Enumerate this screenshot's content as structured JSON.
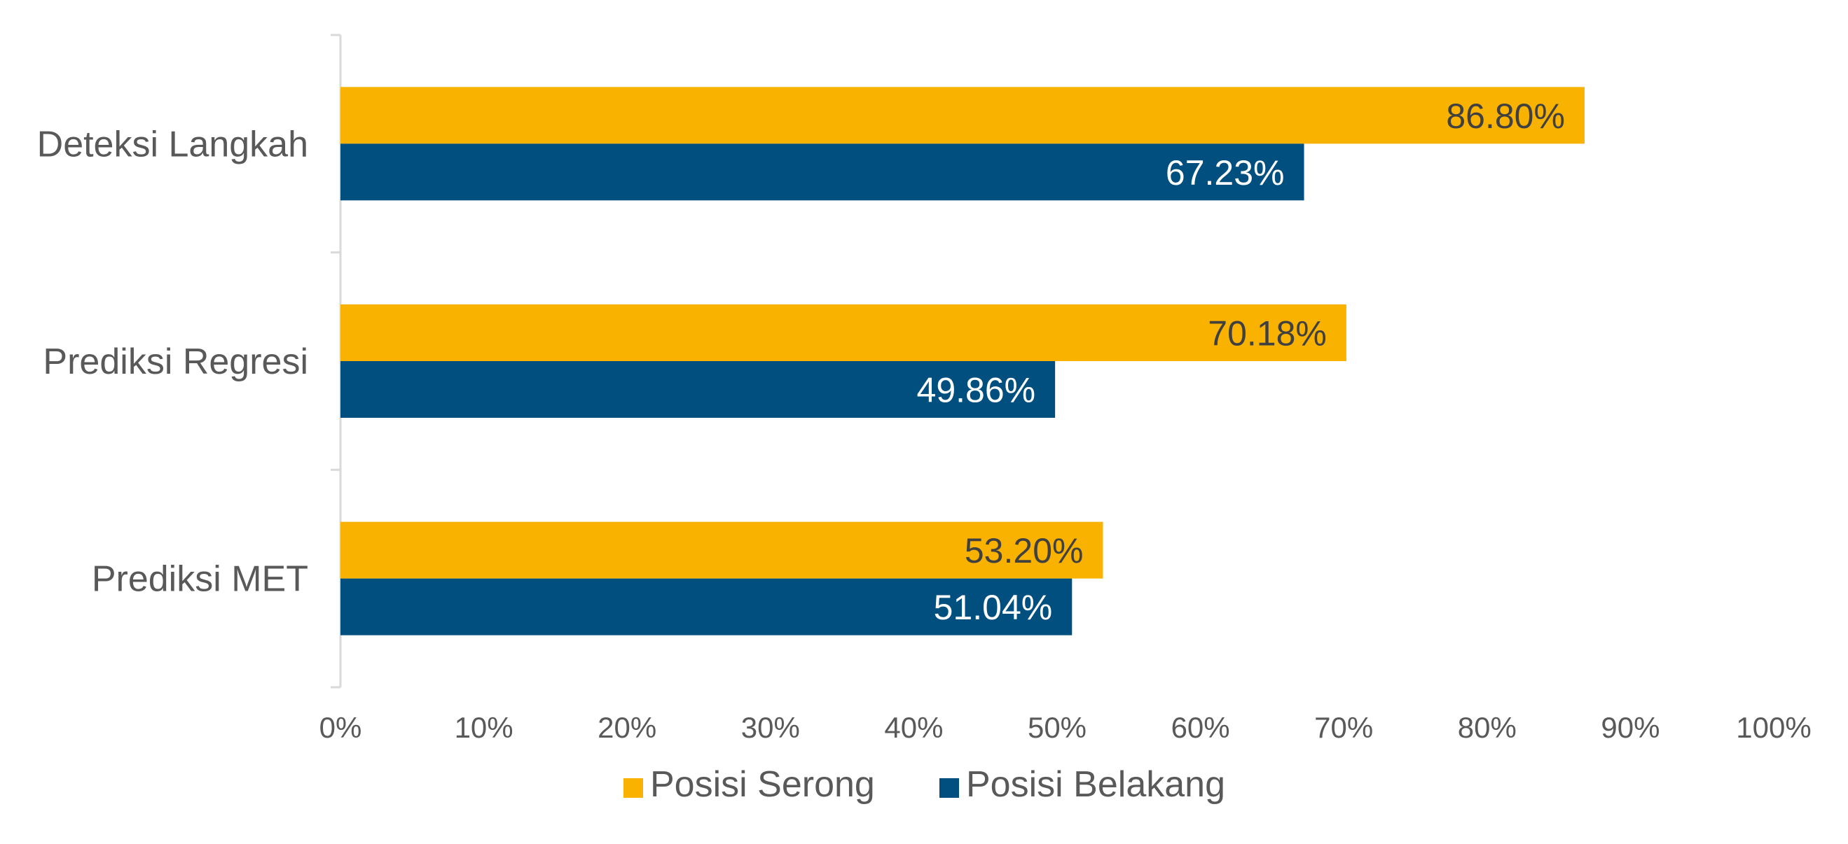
{
  "chart_data": {
    "type": "bar",
    "orientation": "horizontal",
    "categories": [
      "Deteksi Langkah",
      "Prediksi Regresi",
      "Prediksi MET"
    ],
    "series": [
      {
        "name": "Posisi Serong",
        "color": "#F9B200",
        "label_color": "#404040",
        "values": [
          86.8,
          70.18,
          53.2
        ],
        "data_labels": [
          "86.80%",
          "70.18%",
          "53.20%"
        ]
      },
      {
        "name": "Posisi Belakang",
        "color": "#004F7F",
        "label_color": "#FFFFFF",
        "values": [
          67.23,
          49.86,
          51.04
        ],
        "data_labels": [
          "67.23%",
          "49.86%",
          "51.04%"
        ]
      }
    ],
    "xlim": [
      0,
      100
    ],
    "x_ticks": [
      0,
      10,
      20,
      30,
      40,
      50,
      60,
      70,
      80,
      90,
      100
    ],
    "x_tick_labels": [
      "0%",
      "10%",
      "20%",
      "30%",
      "40%",
      "50%",
      "60%",
      "70%",
      "80%",
      "90%",
      "100%"
    ],
    "grid": false,
    "legend_position": "bottom",
    "axis_color": "#D9D9D9"
  }
}
